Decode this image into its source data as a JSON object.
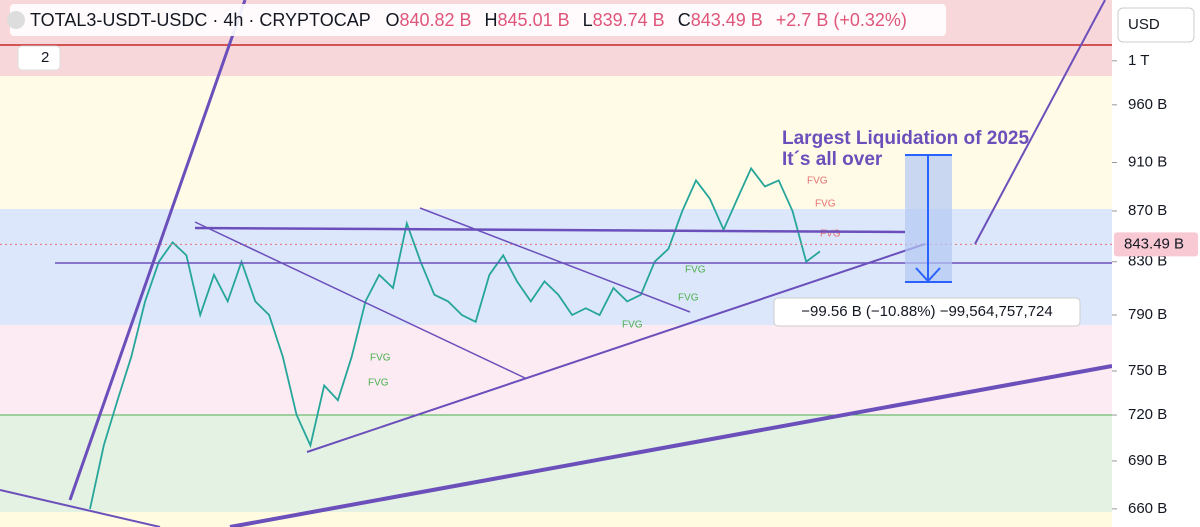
{
  "chart_data": {
    "type": "line",
    "log_scale": true,
    "title": "TOTAL3-USDT-USDC · 4h · CRYPTOCAP",
    "ohlc": {
      "o_label": "O",
      "o": "840.82 B",
      "h_label": "H",
      "h": "845.01 B",
      "l_label": "L",
      "l": "839.74 B",
      "c_label": "C",
      "c": "843.49 B",
      "change": "+2.7 B (+0.32%)"
    },
    "indicator_count": "2",
    "currency": "USD",
    "annotations": [
      "Largest Liquidation of 2025",
      "It´s all over"
    ],
    "measure": "−99.56 B (−10.88%) −99,564,757,724",
    "fvg_labels": [
      "FVG",
      "FVG",
      "FVG",
      "FVG",
      "FVG",
      "FVG",
      "FVG",
      "FVG"
    ],
    "price_label": {
      "value": 843.49,
      "label": "843.49 B"
    },
    "ylim": [
      649,
      1058
    ],
    "yticks": [
      {
        "value": 660,
        "label": "660 B"
      },
      {
        "value": 690,
        "label": "690 B"
      },
      {
        "value": 720,
        "label": "720 B"
      },
      {
        "value": 750,
        "label": "750 B"
      },
      {
        "value": 790,
        "label": "790 B"
      },
      {
        "value": 830,
        "label": "830 B"
      },
      {
        "value": 870,
        "label": "870 B"
      },
      {
        "value": 910,
        "label": "910 B"
      },
      {
        "value": 960,
        "label": "960 B"
      },
      {
        "value": 1000,
        "label": "1 T"
      }
    ],
    "series": [
      {
        "name": "TOTAL3",
        "color": "#26a69a",
        "values": [
          660,
          700,
          730,
          760,
          800,
          830,
          845,
          835,
          790,
          820,
          800,
          830,
          800,
          790,
          760,
          720,
          700,
          740,
          730,
          760,
          800,
          820,
          810,
          860,
          830,
          805,
          800,
          790,
          785,
          820,
          835,
          815,
          800,
          815,
          805,
          790,
          795,
          790,
          810,
          800,
          805,
          830,
          840,
          870,
          895,
          880,
          855,
          880,
          905,
          890,
          895,
          870,
          830,
          838
        ]
      }
    ]
  }
}
